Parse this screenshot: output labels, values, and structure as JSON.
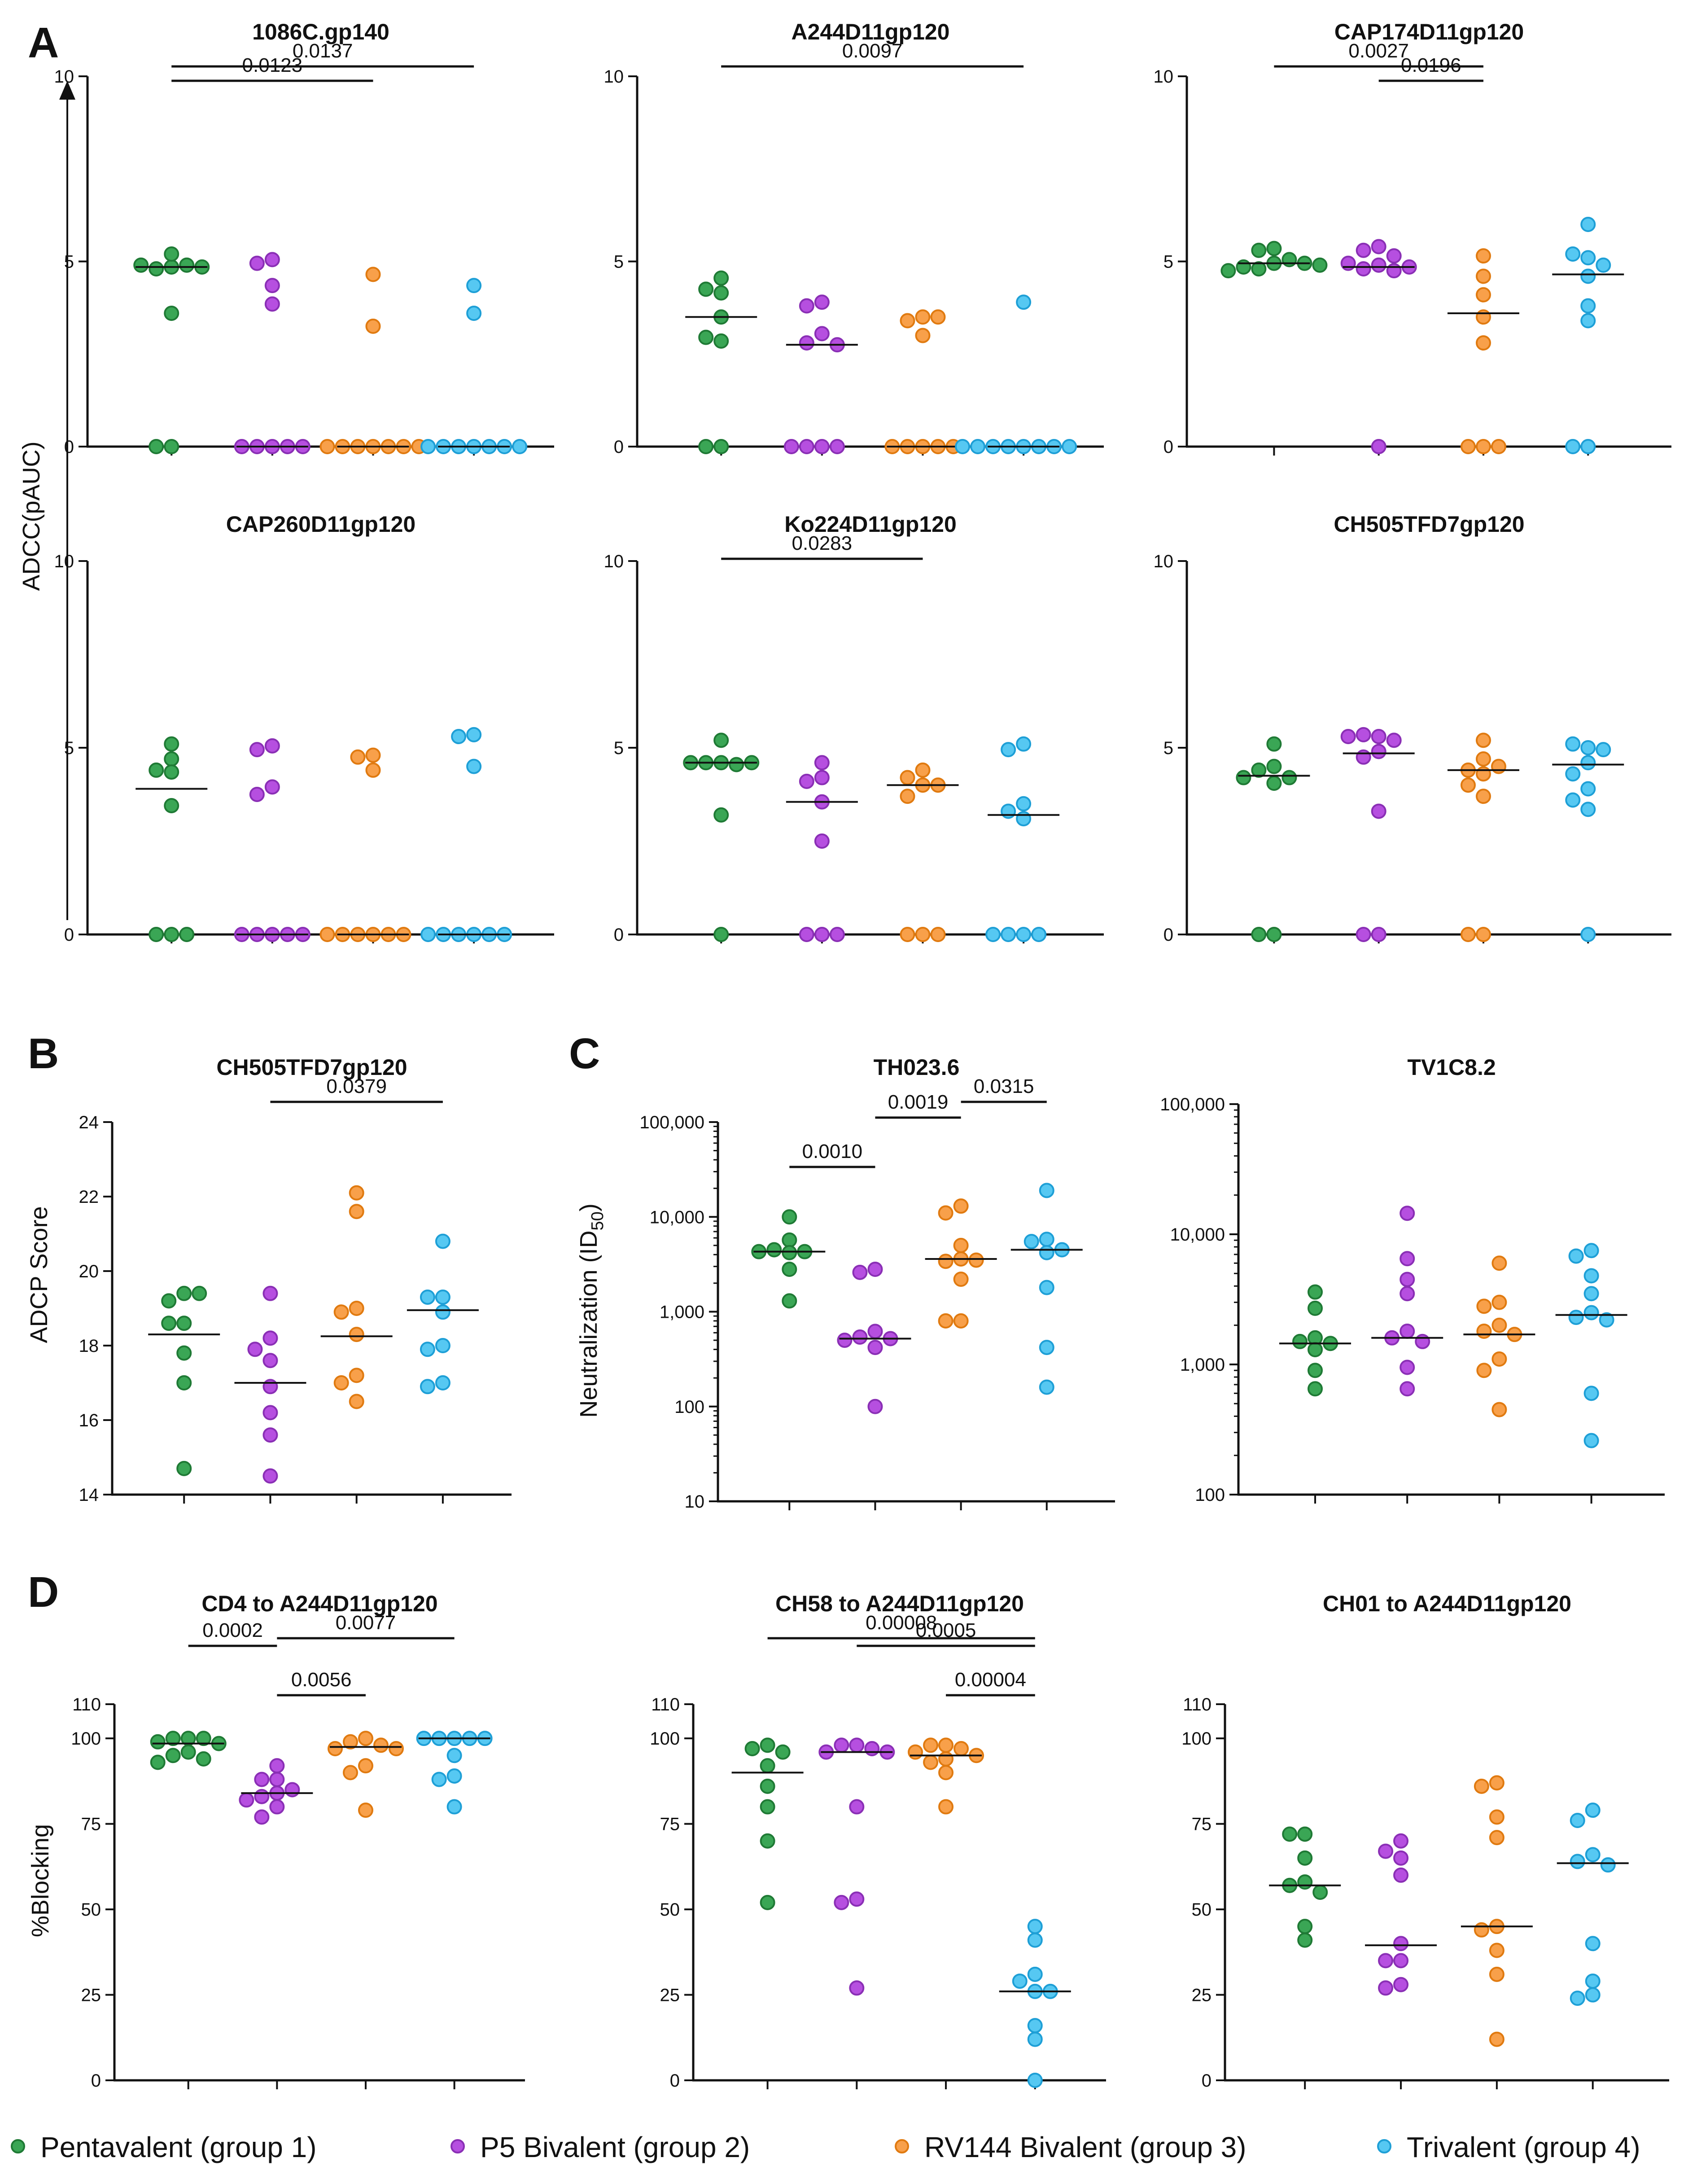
{
  "colors": {
    "g1": {
      "fill": "#3aa655",
      "stroke": "#1f7a35"
    },
    "g2": {
      "fill": "#b64fe0",
      "stroke": "#8a2fb5"
    },
    "g3": {
      "fill": "#f8a04a",
      "stroke": "#e07a10"
    },
    "g4": {
      "fill": "#56c8f2",
      "stroke": "#1e9fd6"
    }
  },
  "panel_labels": [
    "A",
    "B",
    "C",
    "D"
  ],
  "legend": [
    {
      "name": "Pentavalent (group 1)",
      "color": "g1"
    },
    {
      "name": "P5 Bivalent (group 2)",
      "color": "g2"
    },
    {
      "name": "RV144 Bivalent (group 3)",
      "color": "g3"
    },
    {
      "name": "Trivalent (group 4)",
      "color": "g4"
    }
  ],
  "y_titles": {
    "A": "ADCC(pAUC)",
    "B": "ADCP Score",
    "C": "Neutralization (ID",
    "C_sub": "50",
    "C_end": ")",
    "D": "%Blocking"
  },
  "chart_data": [
    {
      "type": "scatter",
      "title": "1086C.gp140",
      "ylabel": "ADCC(pAUC)",
      "scale": "linear",
      "ylim": [
        0,
        10
      ],
      "ticks": [
        0,
        5,
        10
      ],
      "tick_labels": [
        "0",
        "5",
        "10"
      ],
      "groups": [
        {
          "name": "Pentavalent (group 1)",
          "values": [
            4.85,
            4.8,
            4.9,
            5.2,
            4.9,
            4.85,
            3.6,
            0,
            0
          ],
          "median": 4.85
        },
        {
          "name": "P5 Bivalent (group 2)",
          "values": [
            5.05,
            4.95,
            4.35,
            3.85,
            0,
            0,
            0,
            0,
            0
          ],
          "median": 0
        },
        {
          "name": "RV144 Bivalent (group 3)",
          "values": [
            4.65,
            3.25,
            0,
            0,
            0,
            0,
            0,
            0,
            0
          ],
          "median": 0
        },
        {
          "name": "Trivalent (group 4)",
          "values": [
            4.35,
            3.6,
            0,
            0,
            0,
            0,
            0,
            0,
            0
          ],
          "median": 0
        }
      ],
      "comparisons": [
        {
          "a": 1,
          "b": 4,
          "p": "0.0137"
        },
        {
          "a": 1,
          "b": 3,
          "p": "0.0123"
        }
      ]
    },
    {
      "type": "scatter",
      "title": "A244D11gp120",
      "ylabel": "ADCC(pAUC)",
      "scale": "linear",
      "ylim": [
        0,
        10
      ],
      "ticks": [
        0,
        5,
        10
      ],
      "tick_labels": [
        "0",
        "5",
        "10"
      ],
      "groups": [
        {
          "name": "Pentavalent (group 1)",
          "values": [
            4.55,
            4.25,
            4.15,
            3.5,
            2.85,
            2.95,
            0,
            0
          ],
          "median": 3.5
        },
        {
          "name": "P5 Bivalent (group 2)",
          "values": [
            3.9,
            3.8,
            3.05,
            2.8,
            2.75,
            0,
            0,
            0,
            0
          ],
          "median": 2.75
        },
        {
          "name": "RV144 Bivalent (group 3)",
          "values": [
            3.5,
            3.4,
            3.5,
            3.0,
            0,
            0,
            0,
            0,
            0
          ],
          "median": 0
        },
        {
          "name": "Trivalent (group 4)",
          "values": [
            3.9,
            0,
            0,
            0,
            0,
            0,
            0,
            0,
            0
          ],
          "median": 0
        }
      ],
      "comparisons": [
        {
          "a": 1,
          "b": 4,
          "p": "0.0097"
        }
      ]
    },
    {
      "type": "scatter",
      "title": "CAP174D11gp120",
      "ylabel": "ADCC(pAUC)",
      "scale": "linear",
      "ylim": [
        0,
        10
      ],
      "ticks": [
        0,
        5,
        10
      ],
      "tick_labels": [
        "0",
        "5",
        "10"
      ],
      "groups": [
        {
          "name": "Pentavalent (group 1)",
          "values": [
            5.35,
            5.3,
            5.05,
            4.95,
            4.8,
            4.85,
            4.95,
            4.75,
            4.9
          ],
          "median": 4.95
        },
        {
          "name": "P5 Bivalent (group 2)",
          "values": [
            5.4,
            5.3,
            5.15,
            4.9,
            4.8,
            4.75,
            4.95,
            4.85,
            0
          ],
          "median": 4.85
        },
        {
          "name": "RV144 Bivalent (group 3)",
          "values": [
            5.15,
            4.6,
            4.1,
            3.5,
            2.8,
            0,
            0,
            0
          ],
          "median": 3.6
        },
        {
          "name": "Trivalent (group 4)",
          "values": [
            6.0,
            5.1,
            5.2,
            4.9,
            4.6,
            3.8,
            3.4,
            0,
            0
          ],
          "median": 4.65
        }
      ],
      "comparisons": [
        {
          "a": 1,
          "b": 3,
          "p": "0.0027"
        },
        {
          "a": 2,
          "b": 3,
          "p": "0.0196"
        }
      ]
    },
    {
      "type": "scatter",
      "title": "CAP260D11gp120",
      "ylabel": "ADCC(pAUC)",
      "scale": "linear",
      "ylim": [
        0,
        10
      ],
      "ticks": [
        0,
        5,
        10
      ],
      "tick_labels": [
        "0",
        "5",
        "10"
      ],
      "groups": [
        {
          "name": "Pentavalent (group 1)",
          "values": [
            5.1,
            4.7,
            4.4,
            4.35,
            3.45,
            0,
            0,
            0
          ],
          "median": 3.9
        },
        {
          "name": "P5 Bivalent (group 2)",
          "values": [
            5.05,
            4.95,
            3.95,
            3.75,
            0,
            0,
            0,
            0,
            0
          ],
          "median": 0
        },
        {
          "name": "RV144 Bivalent (group 3)",
          "values": [
            4.8,
            4.75,
            4.4,
            0,
            0,
            0,
            0,
            0,
            0
          ],
          "median": 0
        },
        {
          "name": "Trivalent (group 4)",
          "values": [
            5.35,
            5.3,
            4.5,
            0,
            0,
            0,
            0,
            0,
            0
          ],
          "median": 0
        }
      ],
      "comparisons": []
    },
    {
      "type": "scatter",
      "title": "Ko224D11gp120",
      "ylabel": "ADCC(pAUC)",
      "scale": "linear",
      "ylim": [
        0,
        10
      ],
      "ticks": [
        0,
        5,
        10
      ],
      "tick_labels": [
        "0",
        "5",
        "10"
      ],
      "groups": [
        {
          "name": "Pentavalent (group 1)",
          "values": [
            5.2,
            4.6,
            4.6,
            4.55,
            4.6,
            4.6,
            3.2,
            0
          ],
          "median": 4.6
        },
        {
          "name": "P5 Bivalent (group 2)",
          "values": [
            4.6,
            4.2,
            4.1,
            3.55,
            2.5,
            0,
            0,
            0
          ],
          "median": 3.55
        },
        {
          "name": "RV144 Bivalent (group 3)",
          "values": [
            4.4,
            4.2,
            4.0,
            4.0,
            3.7,
            0,
            0,
            0
          ],
          "median": 4.0
        },
        {
          "name": "Trivalent (group 4)",
          "values": [
            5.1,
            4.95,
            3.5,
            3.3,
            3.1,
            0,
            0,
            0,
            0
          ],
          "median": 3.2
        }
      ],
      "comparisons": [
        {
          "a": 1,
          "b": 3,
          "p": "0.0283"
        }
      ]
    },
    {
      "type": "scatter",
      "title": "CH505TFD7gp120",
      "ylabel": "ADCC(pAUC)",
      "scale": "linear",
      "ylim": [
        0,
        10
      ],
      "ticks": [
        0,
        5,
        10
      ],
      "tick_labels": [
        "0",
        "5",
        "10"
      ],
      "groups": [
        {
          "name": "Pentavalent (group 1)",
          "values": [
            5.1,
            4.5,
            4.4,
            4.2,
            4.2,
            4.05,
            0,
            0
          ],
          "median": 4.25
        },
        {
          "name": "P5 Bivalent (group 2)",
          "values": [
            5.3,
            5.35,
            5.2,
            5.3,
            4.9,
            4.75,
            3.3,
            0,
            0
          ],
          "median": 4.85
        },
        {
          "name": "RV144 Bivalent (group 3)",
          "values": [
            5.2,
            4.7,
            4.4,
            4.5,
            4.3,
            3.7,
            4.0,
            0,
            0
          ],
          "median": 4.4
        },
        {
          "name": "Trivalent (group 4)",
          "values": [
            5.0,
            5.1,
            4.95,
            4.6,
            4.3,
            3.9,
            3.6,
            3.35,
            0
          ],
          "median": 4.55
        }
      ],
      "comparisons": []
    },
    {
      "type": "scatter",
      "title": "CH505TFD7gp120",
      "ylabel": "ADCP Score",
      "scale": "linear",
      "ylim": [
        14,
        24
      ],
      "ticks": [
        14,
        16,
        18,
        20,
        22,
        24
      ],
      "tick_labels": [
        "14",
        "16",
        "18",
        "20",
        "22",
        "24"
      ],
      "groups": [
        {
          "name": "Pentavalent (group 1)",
          "values": [
            19.4,
            19.2,
            19.4,
            18.6,
            18.6,
            17.8,
            17.0,
            14.7
          ],
          "median": 18.3
        },
        {
          "name": "P5 Bivalent (group 2)",
          "values": [
            19.4,
            18.2,
            17.6,
            17.9,
            16.9,
            16.2,
            15.6,
            14.5
          ],
          "median": 17.0
        },
        {
          "name": "RV144 Bivalent (group 3)",
          "values": [
            22.1,
            21.6,
            19.0,
            18.9,
            18.3,
            17.2,
            17.0,
            16.5
          ],
          "median": 18.25
        },
        {
          "name": "Trivalent (group 4)",
          "values": [
            20.8,
            19.3,
            19.3,
            18.9,
            18.0,
            17.9,
            17.0,
            16.9
          ],
          "median": 18.95
        }
      ],
      "comparisons": [
        {
          "a": 2,
          "b": 4,
          "p": "0.0379"
        }
      ]
    },
    {
      "type": "scatter",
      "title": "TH023.6",
      "ylabel": "Neutralization (ID50)",
      "scale": "log",
      "ylim": [
        10,
        100000
      ],
      "ticks": [
        10,
        100,
        1000,
        10000,
        100000
      ],
      "tick_labels": [
        "10",
        "100",
        "1,000",
        "10,000",
        "100,000"
      ],
      "groups": [
        {
          "name": "Pentavalent (group 1)",
          "values": [
            10000,
            5700,
            4500,
            4300,
            4300,
            4200,
            2800,
            1300
          ],
          "median": 4300
        },
        {
          "name": "P5 Bivalent (group 2)",
          "values": [
            2800,
            2600,
            620,
            540,
            520,
            500,
            420,
            100
          ],
          "median": 520
        },
        {
          "name": "RV144 Bivalent (group 3)",
          "values": [
            13000,
            11000,
            5000,
            3600,
            3400,
            3500,
            2200,
            800,
            800
          ],
          "median": 3600
        },
        {
          "name": "Trivalent (group 4)",
          "values": [
            19000,
            5800,
            5500,
            4500,
            4200,
            1800,
            420,
            160
          ],
          "median": 4500
        }
      ],
      "comparisons": [
        {
          "a": 3,
          "b": 4,
          "p": "0.0315"
        },
        {
          "a": 2,
          "b": 3,
          "p": "0.0019"
        },
        {
          "a": 1,
          "b": 2,
          "p": "0.0010"
        }
      ]
    },
    {
      "type": "scatter",
      "title": "TV1C8.2",
      "ylabel": "Neutralization (ID50)",
      "scale": "log",
      "ylim": [
        100,
        100000
      ],
      "ticks": [
        100,
        1000,
        10000,
        100000
      ],
      "tick_labels": [
        "100",
        "1,000",
        "10,000",
        "100,000"
      ],
      "groups": [
        {
          "name": "Pentavalent (group 1)",
          "values": [
            3600,
            2700,
            1600,
            1500,
            1450,
            1300,
            900,
            650
          ],
          "median": 1450
        },
        {
          "name": "P5 Bivalent (group 2)",
          "values": [
            14500,
            6500,
            4500,
            3500,
            1800,
            1600,
            1500,
            950,
            650
          ],
          "median": 1600
        },
        {
          "name": "RV144 Bivalent (group 3)",
          "values": [
            6000,
            3000,
            2800,
            2000,
            1800,
            1700,
            1100,
            900,
            450
          ],
          "median": 1700
        },
        {
          "name": "Trivalent (group 4)",
          "values": [
            7500,
            6800,
            4800,
            3500,
            2500,
            2300,
            2200,
            600,
            260
          ],
          "median": 2400
        }
      ],
      "comparisons": []
    },
    {
      "type": "scatter",
      "title": "CD4 to A244D11gp120",
      "ylabel": "%Blocking",
      "scale": "linear",
      "ylim": [
        0,
        110
      ],
      "ticks": [
        0,
        25,
        50,
        75,
        100,
        110
      ],
      "tick_labels": [
        "0",
        "25",
        "50",
        "75",
        "100",
        "110"
      ],
      "groups": [
        {
          "name": "Pentavalent (group 1)",
          "values": [
            100,
            100,
            100,
            99,
            98.5,
            96,
            95,
            94,
            93
          ],
          "median": 98.5
        },
        {
          "name": "P5 Bivalent (group 2)",
          "values": [
            92,
            88,
            88,
            85,
            84,
            83,
            82,
            80,
            77
          ],
          "median": 84
        },
        {
          "name": "RV144 Bivalent (group 3)",
          "values": [
            100,
            99,
            98,
            97,
            97,
            92,
            90,
            79
          ],
          "median": 97.5
        },
        {
          "name": "Trivalent (group 4)",
          "values": [
            100,
            100,
            100,
            100,
            100,
            95,
            89,
            88,
            80
          ],
          "median": 100
        }
      ],
      "comparisons": [
        {
          "a": 2,
          "b": 4,
          "p": "0.0077"
        },
        {
          "a": 1,
          "b": 2,
          "p": "0.0002"
        },
        {
          "a": 2,
          "b": 3,
          "p": "0.0056"
        }
      ]
    },
    {
      "type": "scatter",
      "title": "CH58 to A244D11gp120",
      "ylabel": "%Blocking",
      "scale": "linear",
      "ylim": [
        0,
        110
      ],
      "ticks": [
        0,
        25,
        50,
        75,
        100,
        110
      ],
      "tick_labels": [
        "0",
        "25",
        "50",
        "75",
        "100",
        "110"
      ],
      "groups": [
        {
          "name": "Pentavalent (group 1)",
          "values": [
            98,
            97,
            96,
            92,
            86,
            80,
            70,
            52
          ],
          "median": 90
        },
        {
          "name": "P5 Bivalent (group 2)",
          "values": [
            98,
            98,
            97,
            96,
            96,
            80,
            53,
            52,
            27
          ],
          "median": 96
        },
        {
          "name": "RV144 Bivalent (group 3)",
          "values": [
            98,
            98,
            97,
            96,
            95,
            94,
            93,
            90,
            80
          ],
          "median": 95
        },
        {
          "name": "Trivalent (group 4)",
          "values": [
            45,
            41,
            31,
            29,
            26,
            26,
            16,
            12,
            0
          ],
          "median": 26
        }
      ],
      "comparisons": [
        {
          "a": 1,
          "b": 4,
          "p": "0.00008"
        },
        {
          "a": 2,
          "b": 4,
          "p": "0.0005"
        },
        {
          "a": 3,
          "b": 4,
          "p": "0.00004"
        }
      ]
    },
    {
      "type": "scatter",
      "title": "CH01 to A244D11gp120",
      "ylabel": "%Blocking",
      "scale": "linear",
      "ylim": [
        0,
        110
      ],
      "ticks": [
        0,
        25,
        50,
        75,
        100,
        110
      ],
      "tick_labels": [
        "0",
        "25",
        "50",
        "75",
        "100",
        "110"
      ],
      "groups": [
        {
          "name": "Pentavalent (group 1)",
          "values": [
            72,
            72,
            65,
            58,
            57,
            55,
            45,
            41
          ],
          "median": 57
        },
        {
          "name": "P5 Bivalent (group 2)",
          "values": [
            70,
            67,
            65,
            60,
            40,
            35,
            35,
            28,
            27
          ],
          "median": 39.5
        },
        {
          "name": "RV144 Bivalent (group 3)",
          "values": [
            87,
            86,
            77,
            71,
            45,
            44,
            38,
            31,
            12
          ],
          "median": 45
        },
        {
          "name": "Trivalent (group 4)",
          "values": [
            79,
            76,
            66,
            64,
            63,
            40,
            29,
            25,
            24
          ],
          "median": 63.5
        }
      ],
      "comparisons": []
    }
  ]
}
